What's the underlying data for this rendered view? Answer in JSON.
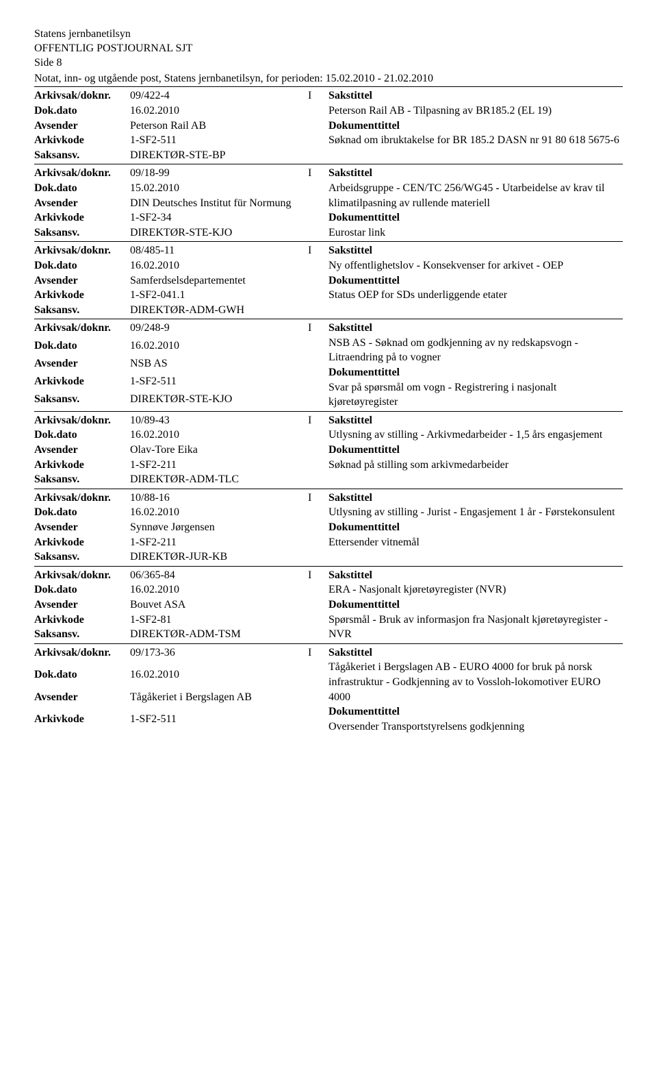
{
  "header": {
    "org": "Statens jernbanetilsyn",
    "title": "OFFENTLIG POSTJOURNAL SJT",
    "side": "Side 8",
    "sub": "Notat, inn- og utgående post, Statens jernbanetilsyn, for perioden: 15.02.2010 - 21.02.2010"
  },
  "labels": {
    "arkivsak": "Arkivsak/doknr.",
    "dokdato": "Dok.dato",
    "avsender": "Avsender",
    "arkivkode": "Arkivkode",
    "saksansv": "Saksansv.",
    "sakstittel": "Sakstittel",
    "dokumenttittel": "Dokumenttittel"
  },
  "entries": [
    {
      "arkivsak": "09/422-4",
      "io": "I",
      "dokdato": "16.02.2010",
      "avsender": "Peterson Rail AB",
      "arkivkode": "1-SF2-511",
      "saksansv": "DIREKTØR-STE-BP",
      "sakstittel": "Peterson Rail AB - Tilpasning av BR185.2 (EL 19)",
      "dokumenttittel": "Søknad om ibruktakelse for BR 185.2 DASN nr 91 80 618 5675-6"
    },
    {
      "arkivsak": "09/18-99",
      "io": "I",
      "dokdato": "15.02.2010",
      "avsender": "DIN Deutsches Institut für Normung",
      "arkivkode": "1-SF2-34",
      "saksansv": "DIREKTØR-STE-KJO",
      "sakstittel": "Arbeidsgruppe - CEN/TC 256/WG45 - Utarbeidelse av krav til klimatilpasning av rullende materiell",
      "dokumenttittel": "Eurostar link"
    },
    {
      "arkivsak": "08/485-11",
      "io": "I",
      "dokdato": "16.02.2010",
      "avsender": "Samferdselsdepartementet",
      "arkivkode": "1-SF2-041.1",
      "saksansv": "DIREKTØR-ADM-GWH",
      "sakstittel": "Ny offentlighetslov - Konsekvenser for arkivet - OEP",
      "dokumenttittel": "Status OEP for SDs underliggende etater"
    },
    {
      "arkivsak": "09/248-9",
      "io": "I",
      "dokdato": "16.02.2010",
      "avsender": "NSB AS",
      "arkivkode": "1-SF2-511",
      "saksansv": "DIREKTØR-STE-KJO",
      "sakstittel": "NSB AS - Søknad om godkjenning av ny redskapsvogn - Litraendring på to vogner",
      "dokumenttittel": "Svar på spørsmål om vogn - Registrering i nasjonalt kjøretøyregister"
    },
    {
      "arkivsak": "10/89-43",
      "io": "I",
      "dokdato": "16.02.2010",
      "avsender": "Olav-Tore Eika",
      "arkivkode": "1-SF2-211",
      "saksansv": "DIREKTØR-ADM-TLC",
      "sakstittel": "Utlysning av stilling - Arkivmedarbeider - 1,5 års engasjement",
      "dokumenttittel": "Søknad på stilling som arkivmedarbeider"
    },
    {
      "arkivsak": "10/88-16",
      "io": "I",
      "dokdato": "16.02.2010",
      "avsender": "Synnøve Jørgensen",
      "arkivkode": "1-SF2-211",
      "saksansv": "DIREKTØR-JUR-KB",
      "sakstittel": "Utlysning av stilling - Jurist - Engasjement 1 år - Førstekonsulent",
      "dokumenttittel": "Ettersender vitnemål"
    },
    {
      "arkivsak": "06/365-84",
      "io": "I",
      "dokdato": "16.02.2010",
      "avsender": "Bouvet ASA",
      "arkivkode": "1-SF2-81",
      "saksansv": "DIREKTØR-ADM-TSM",
      "sakstittel": "ERA - Nasjonalt kjøretøyregister (NVR)",
      "dokumenttittel": "Spørsmål - Bruk av informasjon fra Nasjonalt kjøretøyregister - NVR"
    },
    {
      "arkivsak": "09/173-36",
      "io": "I",
      "dokdato": "16.02.2010",
      "avsender": "Tågåkeriet i Bergslagen AB",
      "arkivkode": "1-SF2-511",
      "saksansv": "",
      "sakstittel": "Tågåkeriet i Bergslagen AB - EURO 4000 for bruk på norsk infrastruktur - Godkjenning av to Vossloh-lokomotiver EURO 4000",
      "dokumenttittel": "Oversender Transportstyrelsens godkjenning"
    }
  ]
}
